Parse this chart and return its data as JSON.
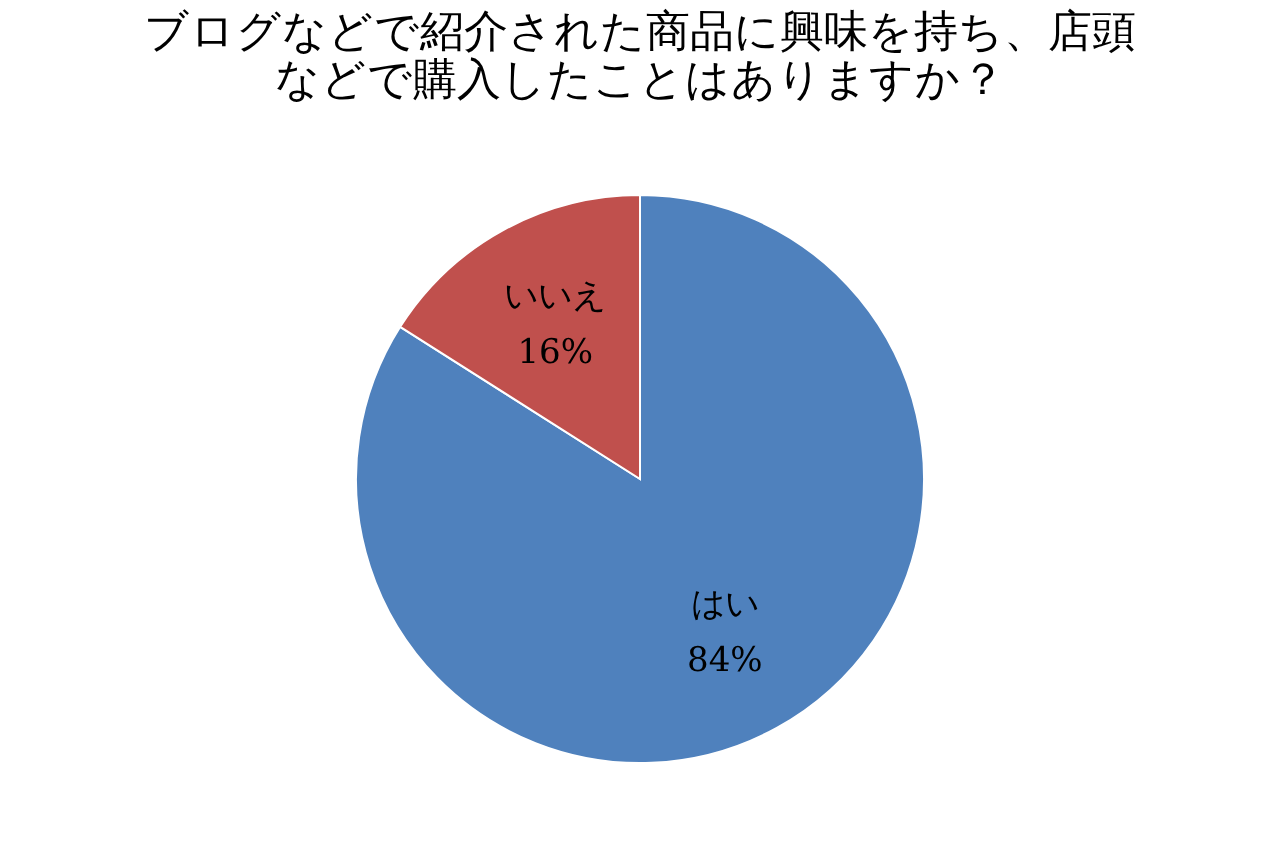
{
  "chart_data": {
    "type": "pie",
    "title": "ブログなどで紹介された商品に興味を持ち、店頭などで購入したことはありますか？",
    "categories": [
      "はい",
      "いいえ"
    ],
    "values": [
      84,
      16
    ],
    "value_labels": [
      "84%",
      "16%"
    ],
    "colors": [
      "#4f81bd",
      "#c0504d"
    ],
    "legend": false
  }
}
